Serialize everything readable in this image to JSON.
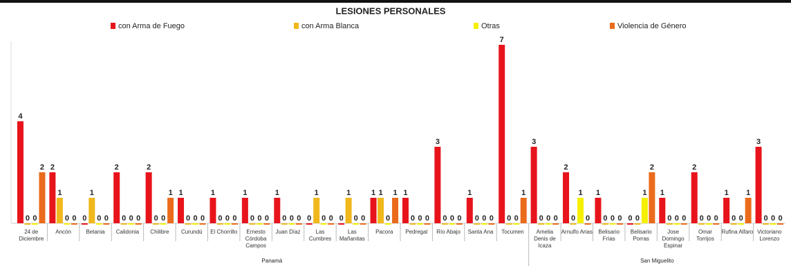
{
  "chart_data": {
    "type": "bar",
    "title": "LESIONES PERSONALES",
    "groups": [
      {
        "label": "Panamá",
        "categories": [
          "24 de Diciembre",
          "Ancón",
          "Betania",
          "Calidonia",
          "Chilibre",
          "Curundú",
          "El Chorrillo",
          "Ernesto Córdoba Campos",
          "Juan Díaz",
          "Las Cumbres",
          "Las Mañanitas",
          "Pacora",
          "Pedregal",
          "Río Abajo",
          "Santa Ana",
          "Tocumen"
        ]
      },
      {
        "label": "San Miguelito",
        "categories": [
          "Amelia Denis de Icaza",
          "Arnulfo Arias",
          "Belisario Frías",
          "Belisario Porras",
          "Jose Domingo Espinar",
          "Omar Torrijos",
          "Rufina Alfaro",
          "Victoriano Lorenzo"
        ]
      }
    ],
    "series": [
      {
        "name": "con Arma de Fuego",
        "color": "#e8141b",
        "values": [
          4,
          2,
          0,
          2,
          2,
          1,
          1,
          1,
          1,
          0,
          0,
          1,
          1,
          3,
          1,
          7,
          3,
          2,
          1,
          0,
          1,
          2,
          1,
          3
        ]
      },
      {
        "name": "con Arma Blanca",
        "color": "#f0b81c",
        "values": [
          0,
          1,
          1,
          0,
          0,
          0,
          0,
          0,
          0,
          1,
          1,
          1,
          0,
          0,
          0,
          0,
          0,
          0,
          0,
          0,
          0,
          0,
          0,
          0
        ]
      },
      {
        "name": "Otras",
        "color": "#f5ef00",
        "values": [
          0,
          0,
          0,
          0,
          0,
          0,
          0,
          0,
          0,
          0,
          0,
          0,
          0,
          0,
          0,
          0,
          0,
          1,
          0,
          1,
          0,
          0,
          0,
          0
        ]
      },
      {
        "name": "Violencia de Género",
        "color": "#ea6b1c",
        "values": [
          2,
          0,
          0,
          0,
          1,
          0,
          0,
          0,
          0,
          0,
          0,
          1,
          0,
          0,
          0,
          1,
          0,
          0,
          0,
          2,
          0,
          0,
          1,
          0
        ]
      }
    ],
    "ylim": [
      0,
      7
    ]
  }
}
